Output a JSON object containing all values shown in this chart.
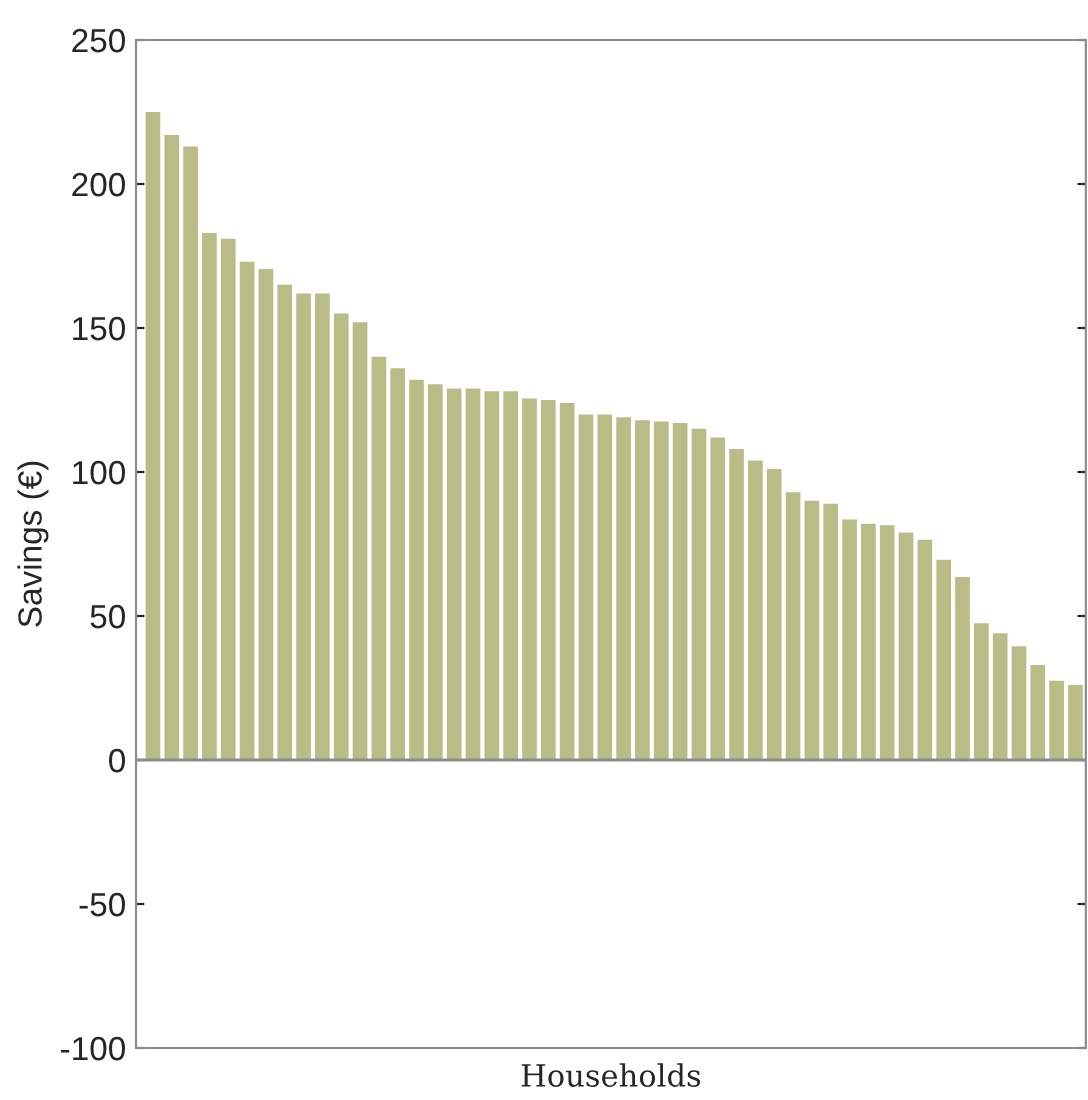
{
  "chart_data": {
    "type": "bar",
    "xlabel": "Households",
    "ylabel": "Savings (€)",
    "categories": [
      null,
      null,
      null,
      null,
      null,
      null,
      null,
      null,
      null,
      null,
      null,
      null,
      null,
      null,
      null,
      null,
      null,
      null,
      null,
      null,
      null,
      null,
      null,
      null,
      null,
      null,
      null,
      null,
      null,
      null,
      null,
      null,
      null,
      null,
      null,
      null,
      null,
      null,
      null,
      null,
      null,
      null,
      null,
      null,
      null,
      null,
      null,
      null,
      null,
      null
    ],
    "values": [
      225,
      217,
      213,
      183,
      181,
      173,
      170.5,
      165,
      162,
      162,
      155,
      152,
      140,
      136,
      132,
      130.5,
      129,
      129,
      128,
      128,
      125.5,
      125,
      124,
      120,
      120,
      119,
      118,
      117.5,
      117,
      115,
      112,
      108,
      104,
      101,
      93,
      90,
      89,
      83.5,
      82,
      81.5,
      79,
      76.5,
      69.5,
      63.5,
      47.5,
      44,
      39.5,
      33,
      27.5,
      26
    ],
    "color": "#b8bd88",
    "ylim": [
      -100,
      250
    ],
    "yticks": [
      -100,
      -50,
      0,
      50,
      100,
      150,
      200,
      250
    ],
    "grid": false,
    "ref_lines": [
      {
        "axis": "y",
        "value": 0,
        "color": "#8c8c8c"
      }
    ]
  }
}
